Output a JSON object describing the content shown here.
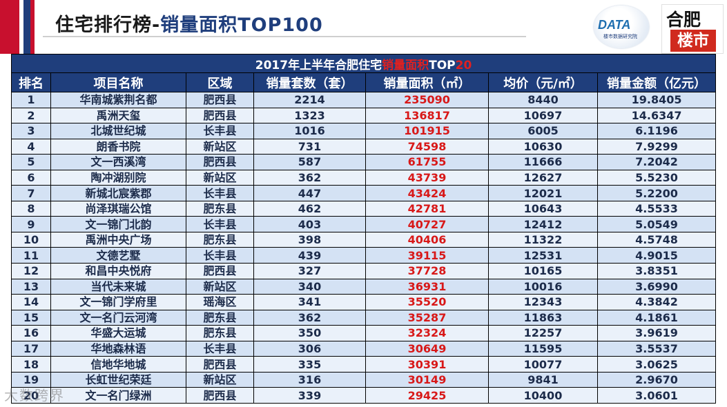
{
  "slide": {
    "title_plain": "住宅排行榜-",
    "title_accent": "销量面积TOP100"
  },
  "logos": {
    "data_main": "DATA",
    "data_sub": "楼市数据研究院",
    "city_line1": "合肥",
    "city_line2": "楼市"
  },
  "table": {
    "caption_pre": "2017年上半年合肥住宅",
    "caption_highlight": "销量面积",
    "caption_mid": "TOP",
    "caption_num": "20",
    "headers": [
      "排名",
      "项目名称",
      "区域",
      "销量套数（套）",
      "销量面积（㎡）",
      "均价（元/㎡）",
      "销量金额（亿元）"
    ],
    "rows": [
      [
        "1",
        "华南城紫荆名都",
        "肥西县",
        "2214",
        "235090",
        "8440",
        "19.8405"
      ],
      [
        "2",
        "禹洲天玺",
        "肥西县",
        "1323",
        "136817",
        "10697",
        "14.6347"
      ],
      [
        "3",
        "北城世纪城",
        "长丰县",
        "1016",
        "101915",
        "6005",
        "6.1196"
      ],
      [
        "4",
        "朗香书院",
        "新站区",
        "731",
        "74598",
        "10630",
        "7.9299"
      ],
      [
        "5",
        "文一西溪湾",
        "肥西县",
        "587",
        "61755",
        "11666",
        "7.2042"
      ],
      [
        "6",
        "陶冲湖别院",
        "新站区",
        "362",
        "43739",
        "12627",
        "5.5230"
      ],
      [
        "7",
        "新城北宸紫郡",
        "长丰县",
        "447",
        "43424",
        "12021",
        "5.2200"
      ],
      [
        "8",
        "尚泽琪瑞公馆",
        "肥东县",
        "462",
        "42781",
        "10643",
        "4.5533"
      ],
      [
        "9",
        "文一锦门北韵",
        "长丰县",
        "403",
        "40727",
        "12412",
        "5.0549"
      ],
      [
        "10",
        "禹洲中央广场",
        "肥东县",
        "398",
        "40406",
        "11322",
        "4.5748"
      ],
      [
        "11",
        "文德艺墅",
        "长丰县",
        "439",
        "39115",
        "12531",
        "4.9015"
      ],
      [
        "12",
        "和昌中央悦府",
        "肥西县",
        "327",
        "37728",
        "10165",
        "3.8351"
      ],
      [
        "13",
        "当代未来城",
        "新站区",
        "340",
        "36931",
        "10016",
        "3.6990"
      ],
      [
        "14",
        "文一锦门学府里",
        "瑶海区",
        "341",
        "35520",
        "12343",
        "4.3842"
      ],
      [
        "15",
        "文一名门云河湾",
        "肥东县",
        "362",
        "35287",
        "11863",
        "4.1861"
      ],
      [
        "16",
        "华盛大运城",
        "肥东县",
        "350",
        "32324",
        "12257",
        "3.9619"
      ],
      [
        "17",
        "华地森林语",
        "长丰县",
        "306",
        "30649",
        "11595",
        "3.5537"
      ],
      [
        "18",
        "信地华地城",
        "肥西县",
        "335",
        "30391",
        "10077",
        "3.0625"
      ],
      [
        "19",
        "长虹世纪荣廷",
        "新站区",
        "316",
        "30149",
        "9841",
        "2.9670"
      ],
      [
        "20",
        "文一名门绿洲",
        "肥西县",
        "339",
        "29425",
        "10400",
        "3.0601"
      ]
    ]
  },
  "watermark": "大数跨界",
  "colors": {
    "header_bg": "#1f3e7c",
    "row_light": "#eaf1fa",
    "row_dark": "#d4e2f4",
    "area_text": "#d81818",
    "caption_highlight": "#e02020"
  }
}
